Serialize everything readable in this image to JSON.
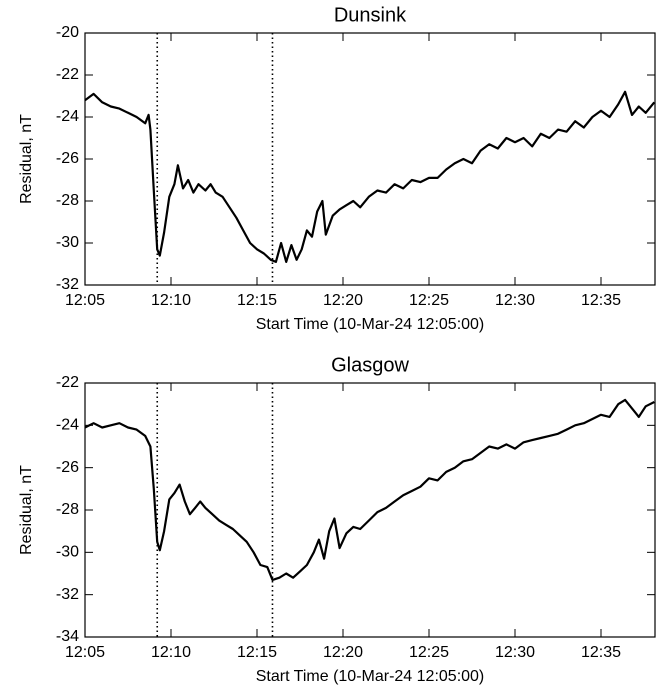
{
  "chart_data": [
    {
      "type": "line",
      "title": "Dunsink",
      "xlabel": "Start Time (10-Mar-24 12:05:00)",
      "ylabel": "Residual, nT",
      "x": [
        0,
        0.5,
        1,
        1.5,
        2,
        2.5,
        3,
        3.5,
        3.7,
        3.8,
        4.0,
        4.2,
        4.35,
        4.6,
        4.9,
        5.2,
        5.4,
        5.7,
        6.0,
        6.3,
        6.6,
        7.0,
        7.3,
        7.6,
        8.0,
        8.4,
        8.8,
        9.2,
        9.6,
        10.0,
        10.4,
        10.8,
        11.1,
        11.4,
        11.7,
        12.0,
        12.3,
        12.6,
        12.9,
        13.2,
        13.5,
        13.8,
        14.0,
        14.4,
        14.8,
        15.2,
        15.6,
        16,
        16.5,
        17,
        17.5,
        18,
        18.5,
        19,
        19.5,
        20,
        20.5,
        21,
        21.5,
        22,
        22.5,
        23,
        23.5,
        24,
        24.5,
        25,
        25.5,
        26,
        26.5,
        27,
        27.5,
        28,
        28.5,
        29,
        29.5,
        30,
        30.5,
        31,
        31.4,
        31.8,
        32.2,
        32.6,
        33.1
      ],
      "values": [
        -23.2,
        -22.9,
        -23.3,
        -23.5,
        -23.6,
        -23.8,
        -24.0,
        -24.3,
        -23.9,
        -24.6,
        -27.5,
        -30.3,
        -30.6,
        -29.5,
        -27.8,
        -27.2,
        -26.3,
        -27.4,
        -27.0,
        -27.6,
        -27.2,
        -27.5,
        -27.2,
        -27.6,
        -27.8,
        -28.3,
        -28.8,
        -29.4,
        -30.0,
        -30.3,
        -30.5,
        -30.8,
        -30.9,
        -30.0,
        -30.9,
        -30.1,
        -30.8,
        -30.3,
        -29.4,
        -29.7,
        -28.5,
        -28.0,
        -29.6,
        -28.7,
        -28.4,
        -28.2,
        -28.0,
        -28.3,
        -27.8,
        -27.5,
        -27.6,
        -27.2,
        -27.4,
        -27.0,
        -27.1,
        -26.9,
        -26.9,
        -26.5,
        -26.2,
        -26.0,
        -26.2,
        -25.6,
        -25.3,
        -25.5,
        -25.0,
        -25.2,
        -25.0,
        -25.4,
        -24.8,
        -25.0,
        -24.6,
        -24.7,
        -24.2,
        -24.5,
        -24.0,
        -23.7,
        -24.0,
        -23.4,
        -22.8,
        -23.9,
        -23.5,
        -23.8,
        -23.3
      ],
      "color": "#000000",
      "xlim": [
        0,
        33.14
      ],
      "xticks": [
        {
          "value": 0,
          "label": "12:05"
        },
        {
          "value": 5,
          "label": "12:10"
        },
        {
          "value": 10,
          "label": "12:15"
        },
        {
          "value": 15,
          "label": "12:20"
        },
        {
          "value": 20,
          "label": "12:25"
        },
        {
          "value": 25,
          "label": "12:30"
        },
        {
          "value": 30,
          "label": "12:35"
        }
      ],
      "ylim": [
        -32,
        -20
      ],
      "yticks": [
        -32,
        -30,
        -28,
        -26,
        -24,
        -22,
        -20
      ],
      "vlines": [
        4.2,
        10.9
      ]
    },
    {
      "type": "line",
      "title": "Glasgow",
      "xlabel": "Start Time (10-Mar-24 12:05:00)",
      "ylabel": "Residual, nT",
      "x": [
        0,
        0.5,
        1,
        1.5,
        2,
        2.5,
        3,
        3.5,
        3.8,
        4.0,
        4.2,
        4.35,
        4.6,
        4.9,
        5.2,
        5.5,
        5.8,
        6.1,
        6.4,
        6.7,
        7.0,
        7.4,
        7.8,
        8.2,
        8.6,
        9.0,
        9.4,
        9.8,
        10.2,
        10.6,
        10.9,
        11.3,
        11.7,
        12.1,
        12.5,
        12.9,
        13.3,
        13.6,
        13.9,
        14.2,
        14.5,
        14.8,
        15.2,
        15.6,
        16,
        16.5,
        17,
        17.5,
        18,
        18.5,
        19,
        19.5,
        20,
        20.5,
        21,
        21.5,
        22,
        22.5,
        23,
        23.5,
        24,
        24.5,
        25,
        25.5,
        26,
        26.5,
        27,
        27.5,
        28,
        28.5,
        29,
        29.5,
        30,
        30.5,
        31,
        31.4,
        31.8,
        32.2,
        32.6,
        33.1
      ],
      "values": [
        -24.1,
        -23.9,
        -24.1,
        -24.0,
        -23.9,
        -24.1,
        -24.2,
        -24.5,
        -25.0,
        -27.0,
        -29.5,
        -29.9,
        -29.0,
        -27.5,
        -27.2,
        -26.8,
        -27.6,
        -28.2,
        -27.9,
        -27.6,
        -27.9,
        -28.2,
        -28.5,
        -28.7,
        -28.9,
        -29.2,
        -29.5,
        -30.0,
        -30.6,
        -30.7,
        -31.3,
        -31.2,
        -31.0,
        -31.2,
        -30.9,
        -30.6,
        -30.0,
        -29.4,
        -30.3,
        -29.0,
        -28.4,
        -29.8,
        -29.1,
        -28.8,
        -28.9,
        -28.5,
        -28.1,
        -27.9,
        -27.6,
        -27.3,
        -27.1,
        -26.9,
        -26.5,
        -26.6,
        -26.2,
        -26.0,
        -25.7,
        -25.6,
        -25.3,
        -25.0,
        -25.1,
        -24.9,
        -25.1,
        -24.8,
        -24.7,
        -24.6,
        -24.5,
        -24.4,
        -24.2,
        -24.0,
        -23.9,
        -23.7,
        -23.5,
        -23.6,
        -23.0,
        -22.8,
        -23.2,
        -23.6,
        -23.1,
        -22.9
      ],
      "color": "#000000",
      "xlim": [
        0,
        33.14
      ],
      "xticks": [
        {
          "value": 0,
          "label": "12:05"
        },
        {
          "value": 5,
          "label": "12:10"
        },
        {
          "value": 10,
          "label": "12:15"
        },
        {
          "value": 15,
          "label": "12:20"
        },
        {
          "value": 20,
          "label": "12:25"
        },
        {
          "value": 25,
          "label": "12:30"
        },
        {
          "value": 30,
          "label": "12:35"
        }
      ],
      "ylim": [
        -34,
        -22
      ],
      "yticks": [
        -34,
        -32,
        -30,
        -28,
        -26,
        -24,
        -22
      ],
      "vlines": [
        4.2,
        10.9
      ]
    }
  ]
}
